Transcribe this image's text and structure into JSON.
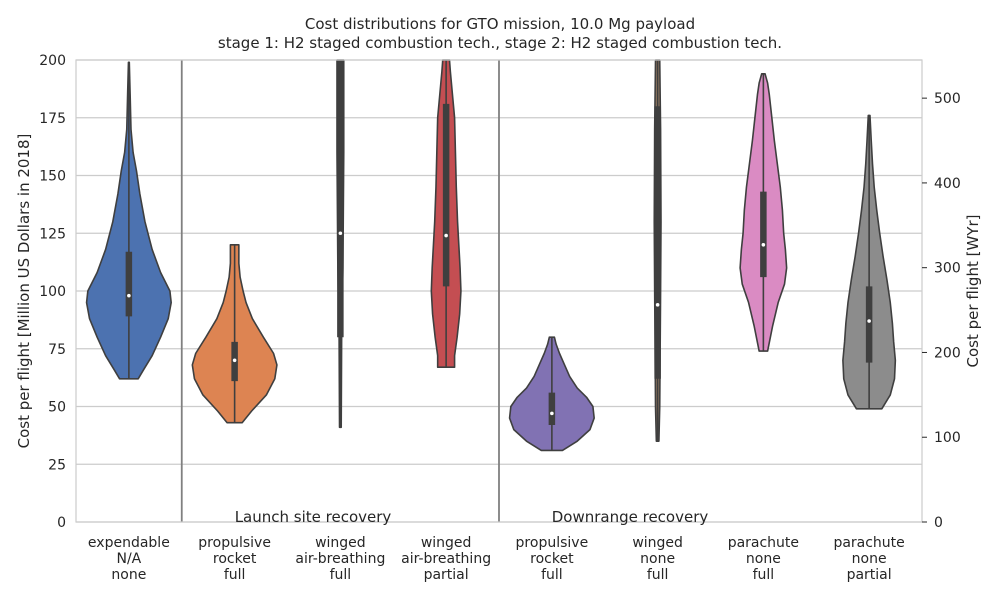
{
  "chart_data": {
    "type": "violin",
    "title_line1": "Cost distributions for GTO mission, 10.0 Mg payload",
    "title_line2": "stage 1: H2 staged combustion tech., stage 2: H2 staged combustion tech.",
    "ylabel_left": "Cost per flight [Million US Dollars in 2018]",
    "ylabel_right": "Cost per flight [WYr]",
    "ylim_left": [
      0,
      200
    ],
    "ylim_right": [
      0,
      545
    ],
    "yticks_left": [
      0,
      25,
      50,
      75,
      100,
      125,
      150,
      175,
      200
    ],
    "yticks_right": [
      0,
      100,
      200,
      300,
      400,
      500
    ],
    "grid": true,
    "group_labels": [
      "Launch site recovery",
      "Downrange recovery"
    ],
    "categories": [
      [
        "expendable",
        "N/A",
        "none"
      ],
      [
        "propulsive",
        "rocket",
        "full"
      ],
      [
        "winged",
        "air-breathing",
        "full"
      ],
      [
        "winged",
        "air-breathing",
        "partial"
      ],
      [
        "propulsive",
        "rocket",
        "full"
      ],
      [
        "winged",
        "none",
        "full"
      ],
      [
        "parachute",
        "none",
        "full"
      ],
      [
        "parachute",
        "none",
        "partial"
      ]
    ],
    "series": [
      {
        "color": "#4c72b0",
        "min": 62,
        "max": 199,
        "q1": 89,
        "median": 98,
        "q3": 117,
        "shape": [
          [
            62,
            0.22
          ],
          [
            66,
            0.35
          ],
          [
            72,
            0.55
          ],
          [
            80,
            0.75
          ],
          [
            88,
            0.93
          ],
          [
            95,
            1.0
          ],
          [
            100,
            0.97
          ],
          [
            108,
            0.75
          ],
          [
            118,
            0.55
          ],
          [
            130,
            0.38
          ],
          [
            142,
            0.26
          ],
          [
            152,
            0.18
          ],
          [
            160,
            0.1
          ],
          [
            170,
            0.05
          ],
          [
            185,
            0.03
          ],
          [
            199,
            0.01
          ]
        ]
      },
      {
        "color": "#dd8452",
        "min": 43,
        "max": 120,
        "q1": 61,
        "median": 70,
        "q3": 78,
        "shape": [
          [
            43,
            0.18
          ],
          [
            48,
            0.4
          ],
          [
            55,
            0.75
          ],
          [
            62,
            0.95
          ],
          [
            68,
            1.0
          ],
          [
            73,
            0.92
          ],
          [
            80,
            0.68
          ],
          [
            88,
            0.42
          ],
          [
            95,
            0.27
          ],
          [
            100,
            0.2
          ],
          [
            106,
            0.13
          ],
          [
            112,
            0.1
          ],
          [
            117,
            0.1
          ],
          [
            120,
            0.1
          ]
        ]
      },
      {
        "color": "#55a868",
        "min": 41,
        "max": 200,
        "q1": 80,
        "median": 125,
        "q3": 200,
        "shape": [
          [
            41,
            0.02
          ],
          [
            80,
            0.03
          ],
          [
            110,
            0.06
          ],
          [
            160,
            0.08
          ],
          [
            200,
            0.08
          ]
        ]
      },
      {
        "color": "#c44e52",
        "min": 67,
        "max": 200,
        "q1": 102,
        "median": 124,
        "q3": 181,
        "shape": [
          [
            67,
            0.2
          ],
          [
            72,
            0.2
          ],
          [
            80,
            0.26
          ],
          [
            90,
            0.32
          ],
          [
            100,
            0.35
          ],
          [
            110,
            0.33
          ],
          [
            120,
            0.3
          ],
          [
            130,
            0.27
          ],
          [
            145,
            0.24
          ],
          [
            160,
            0.22
          ],
          [
            175,
            0.2
          ],
          [
            185,
            0.15
          ],
          [
            195,
            0.1
          ],
          [
            200,
            0.08
          ]
        ]
      },
      {
        "color": "#8172b3",
        "min": 31,
        "max": 80,
        "q1": 42,
        "median": 47,
        "q3": 56,
        "shape": [
          [
            31,
            0.25
          ],
          [
            35,
            0.6
          ],
          [
            40,
            0.9
          ],
          [
            45,
            1.0
          ],
          [
            50,
            0.97
          ],
          [
            54,
            0.82
          ],
          [
            58,
            0.6
          ],
          [
            63,
            0.42
          ],
          [
            68,
            0.3
          ],
          [
            73,
            0.18
          ],
          [
            77,
            0.1
          ],
          [
            80,
            0.06
          ]
        ]
      },
      {
        "color": "#937860",
        "min": 35,
        "max": 200,
        "q1": 62,
        "median": 94,
        "q3": 180,
        "shape": [
          [
            35,
            0.03
          ],
          [
            50,
            0.05
          ],
          [
            75,
            0.06
          ],
          [
            100,
            0.07
          ],
          [
            130,
            0.08
          ],
          [
            170,
            0.07
          ],
          [
            200,
            0.05
          ]
        ]
      },
      {
        "color": "#da8bc3",
        "min": 74,
        "max": 194,
        "q1": 106,
        "median": 120,
        "q3": 143,
        "shape": [
          [
            74,
            0.1
          ],
          [
            85,
            0.22
          ],
          [
            95,
            0.35
          ],
          [
            103,
            0.5
          ],
          [
            110,
            0.55
          ],
          [
            118,
            0.52
          ],
          [
            125,
            0.48
          ],
          [
            135,
            0.45
          ],
          [
            145,
            0.4
          ],
          [
            155,
            0.33
          ],
          [
            165,
            0.26
          ],
          [
            175,
            0.2
          ],
          [
            185,
            0.14
          ],
          [
            190,
            0.1
          ],
          [
            194,
            0.04
          ]
        ]
      },
      {
        "color": "#8c8c8c",
        "min": 49,
        "max": 176,
        "q1": 69,
        "median": 87,
        "q3": 102,
        "shape": [
          [
            49,
            0.3
          ],
          [
            55,
            0.5
          ],
          [
            62,
            0.6
          ],
          [
            70,
            0.62
          ],
          [
            78,
            0.58
          ],
          [
            86,
            0.55
          ],
          [
            95,
            0.5
          ],
          [
            105,
            0.42
          ],
          [
            115,
            0.33
          ],
          [
            125,
            0.25
          ],
          [
            135,
            0.18
          ],
          [
            145,
            0.12
          ],
          [
            155,
            0.08
          ],
          [
            165,
            0.05
          ],
          [
            176,
            0.02
          ]
        ]
      }
    ]
  }
}
